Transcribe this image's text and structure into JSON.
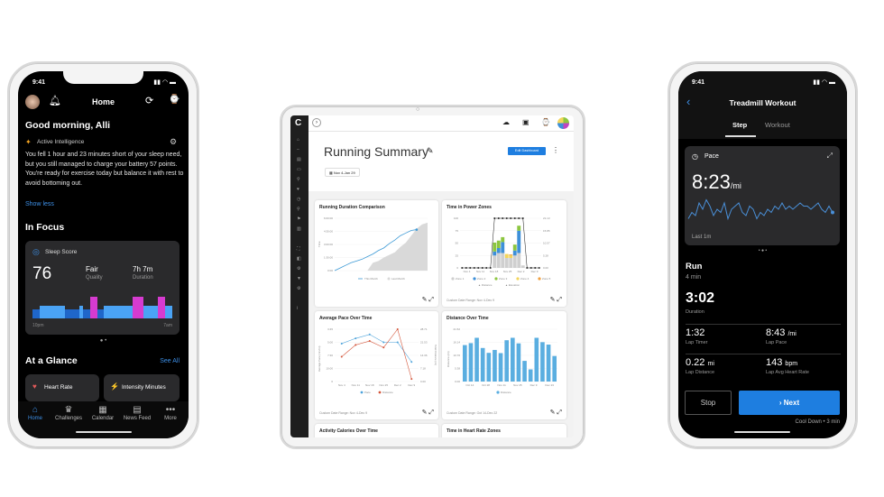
{
  "phone_home": {
    "status_time": "9:41",
    "header_title": "Home",
    "greeting": "Good morning, Alli",
    "insight_label": "Active Intelligence",
    "insight_text": "You fell 1 hour and 23 minutes short of your sleep need, but you still managed to charge your battery 57 points. You're ready for exercise today but balance it with rest to avoid bottoming out.",
    "show_less": "Show less",
    "in_focus": "In Focus",
    "sleep": {
      "title": "Sleep Score",
      "score": "76",
      "quality_value": "Fair",
      "quality_label": "Quality",
      "duration_value": "7h 7m",
      "duration_label": "Duration",
      "start_label": "10pm",
      "end_label": "7am",
      "stages": [
        2,
        2,
        1,
        1,
        3,
        3,
        3,
        1,
        1,
        2,
        2,
        2,
        2,
        1,
        2,
        2,
        4,
        4,
        2,
        2,
        1,
        1,
        1,
        1,
        1,
        1,
        1,
        1,
        4,
        4,
        4,
        1,
        1,
        1,
        1,
        4,
        4,
        1,
        1
      ],
      "stage_colors": {
        "1": "#4aa3f5",
        "2": "#1f66c9",
        "3": "#4aa3f5",
        "4": "#d63bd0"
      }
    },
    "at_a_glance": "At a Glance",
    "see_all": "See All",
    "tiles": [
      {
        "label": "Heart Rate",
        "icon": "heart-icon"
      },
      {
        "label": "Intensity Minutes",
        "icon": "intensity-icon"
      }
    ],
    "tabs": [
      {
        "label": "Home",
        "icon": "home-icon"
      },
      {
        "label": "Challenges",
        "icon": "challenges-icon"
      },
      {
        "label": "Calendar",
        "icon": "calendar-icon"
      },
      {
        "label": "News Feed",
        "icon": "news-feed-icon"
      },
      {
        "label": "More",
        "icon": "more-icon"
      }
    ],
    "accent": "#3d8fe6"
  },
  "tablet": {
    "title": "Running Summary",
    "edit_button": "Edit Dashboard",
    "date_range": "Nov 4-Jan 29",
    "cards": {
      "duration": {
        "title": "Running Duration Comparison",
        "y_label": "Time",
        "y_ticks": [
          "0:00",
          "1:30:00",
          "3:00:00",
          "4:30:00",
          "6:00:00"
        ],
        "legend": [
          "This Month",
          "Last Month"
        ],
        "this_month": [
          0,
          0.3,
          0.6,
          0.9,
          1.1,
          1.3,
          1.6,
          1.9,
          2.3,
          2.6,
          3.1,
          3.5,
          4.0,
          4.3,
          4.6,
          4.7
        ],
        "last_month": [
          0,
          0,
          0,
          0,
          0,
          0,
          0,
          0.9,
          1.1,
          1.5,
          1.8,
          2.1,
          2.7,
          3.2,
          4.0,
          4.8,
          5.3,
          5.5
        ]
      },
      "power": {
        "title": "Time in Power Zones",
        "y_left_label": "Minutes",
        "y_left_ticks": [
          "0",
          "25",
          "50",
          "75",
          "100"
        ],
        "y_right_ticks": [
          "0.00",
          "5.28",
          "10.57",
          "15.85",
          "21.13"
        ],
        "x_ticks": [
          "Nov 4",
          "Nov 11",
          "Nov 18",
          "Nov 25",
          "Dec 2",
          "Dec 9"
        ],
        "legend": [
          "Zone 1",
          "Zone 2",
          "Zone 3",
          "Zone 4",
          "Zone 5"
        ],
        "legend2": [
          "Distance",
          "Elevation"
        ],
        "footer": "Custom Date Range: Nov 4-Dec 9",
        "zone_colors": [
          "#cfcfcf",
          "#3d8fd8",
          "#8cc63f",
          "#f3d55b",
          "#f0a040"
        ],
        "stacks": [
          [
            0,
            0,
            0,
            0,
            0
          ],
          [
            0,
            0,
            0,
            0,
            0
          ],
          [
            0,
            0,
            0,
            0,
            0
          ],
          [
            0,
            0,
            0,
            0,
            0
          ],
          [
            0,
            0,
            0,
            0,
            0
          ],
          [
            0,
            0,
            0,
            0,
            0
          ],
          [
            0,
            0,
            0,
            0,
            0
          ],
          [
            0,
            0,
            0,
            0,
            0
          ],
          [
            25,
            8,
            18,
            0,
            0
          ],
          [
            30,
            10,
            15,
            0,
            0
          ],
          [
            30,
            22,
            10,
            0,
            0
          ],
          [
            20,
            0,
            0,
            8,
            0
          ],
          [
            20,
            0,
            0,
            5,
            2
          ],
          [
            25,
            10,
            12,
            0,
            0
          ],
          [
            30,
            45,
            10,
            0,
            0
          ],
          [
            5,
            0,
            0,
            0,
            0
          ],
          [
            0,
            0,
            0,
            0,
            0
          ],
          [
            0,
            0,
            0,
            0,
            0
          ],
          [
            0,
            0,
            0,
            0,
            0
          ],
          [
            0,
            0,
            0,
            0,
            0
          ]
        ]
      },
      "pace": {
        "title": "Average Pace Over Time",
        "y_left_label": "Average Pace (min/mi)",
        "y_right_label": "Total Distance (mi)",
        "y_left_ticks": [
          "0",
          "10:00",
          "7:30",
          "5:00",
          "3:45"
        ],
        "y_right_ticks": [
          "0.00",
          "7.18",
          "14.36",
          "21.53",
          "28.71"
        ],
        "x_ticks": [
          "Nov 4",
          "Nov 11",
          "Nov 18",
          "Nov 25",
          "Dec 2",
          "Dec 9"
        ],
        "legend": [
          "Pace",
          "Distance"
        ],
        "footer": "Custom Date Range: Nov 4-Dec 9",
        "pace": [
          2.9,
          3.3,
          3.6,
          3.0,
          3.0,
          1.5
        ],
        "distance": [
          1.9,
          2.8,
          3.1,
          2.6,
          4.0,
          0.2
        ],
        "colors": [
          "#4da3db",
          "#d4553a"
        ]
      },
      "distance": {
        "title": "Distance Over Time",
        "y_label": "Distance (mi)",
        "y_ticks": [
          "0.00",
          "5.38",
          "10.76",
          "16.14",
          "21.52"
        ],
        "x_ticks": [
          "Oct 14",
          "Oct 28",
          "Nov 11",
          "Nov 25",
          "Dec 9",
          "Dec 23"
        ],
        "legend": [
          "Distance"
        ],
        "footer": "Custom Date Range: Oct 14-Dec 22",
        "values": [
          15,
          15.8,
          18,
          13.8,
          11.8,
          13,
          11.7,
          17,
          18,
          15.7,
          8.5,
          5,
          18,
          16.2,
          15.2,
          10.5
        ],
        "color": "#5aaee0"
      },
      "calories_title": "Activity Calories Over Time",
      "hr_title": "Time in Heart Rate Zones"
    }
  },
  "phone_workout": {
    "status_time": "9:41",
    "title": "Treadmill Workout",
    "tabs": [
      "Step",
      "Workout"
    ],
    "pace_label": "Pace",
    "pace_value": "8:23",
    "pace_unit": "/mi",
    "pace_window": "Last 1m",
    "pace_series": [
      3,
      5,
      4,
      8,
      6,
      9,
      7,
      4,
      6,
      5,
      8,
      3,
      6,
      7,
      8,
      5,
      4,
      7,
      6,
      3,
      5,
      4,
      6,
      5,
      7,
      6,
      8,
      6,
      7,
      6,
      7,
      8,
      7,
      7,
      6,
      7,
      8,
      6,
      5,
      7,
      5
    ],
    "step_name": "Run",
    "step_duration": "4 min",
    "duration_value": "3:02",
    "duration_label": "Duration",
    "metrics": [
      {
        "value": "1:32",
        "unit": "",
        "label": "Lap Timer"
      },
      {
        "value": "8:43",
        "unit": "/mi",
        "label": "Lap Pace"
      },
      {
        "value": "0.22",
        "unit": "mi",
        "label": "Lap Distance"
      },
      {
        "value": "143",
        "unit": "bpm",
        "label": "Lap Avg Heart Rate"
      }
    ],
    "stop": "Stop",
    "next": "Next",
    "next_step": "Cool Down • 3 min",
    "accent": "#1e7ee0"
  }
}
